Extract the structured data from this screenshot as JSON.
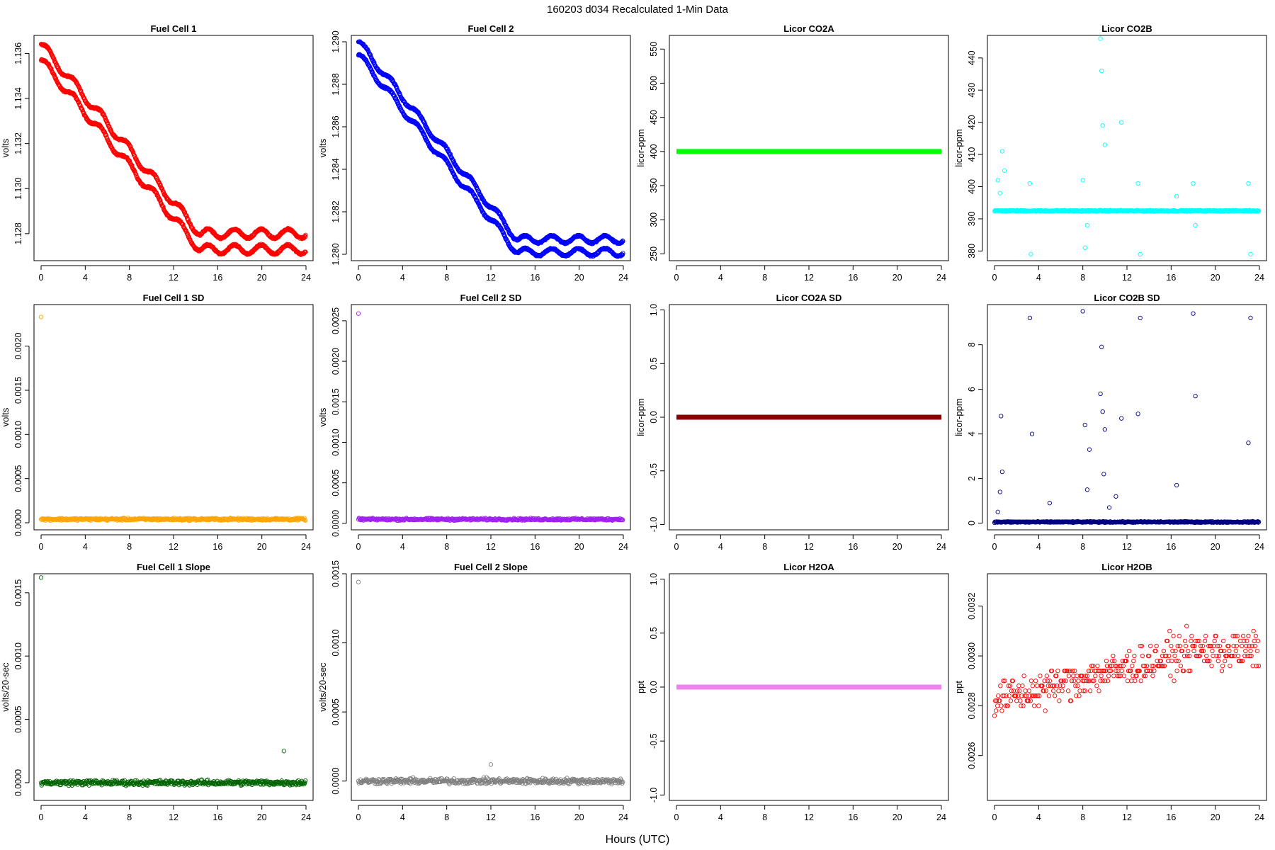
{
  "chart_data": {
    "type": "scatter",
    "title": "160203   d034   Recalculated 1-Min Data",
    "xlabel": "Hours (UTC)",
    "x_ticks": [
      "0",
      "4",
      "8",
      "12",
      "16",
      "20",
      "24"
    ],
    "xlim": [
      0,
      24
    ],
    "panels": [
      {
        "id": "fc1",
        "title": "Fuel Cell 1",
        "ylabel": "volts",
        "color": "#ff0000",
        "ylim": [
          1.1268,
          1.1368
        ],
        "yticks": [
          1.128,
          1.13,
          1.132,
          1.134,
          1.136
        ],
        "ytick_labels": [
          "1.128",
          "1.130",
          "1.132",
          "1.134",
          "1.136"
        ],
        "pattern": "fuelcell",
        "series_hi": 1.1364,
        "series_lo": 1.1361,
        "series_end": 1.128,
        "band": 0.0007
      },
      {
        "id": "fc2",
        "title": "Fuel Cell 2",
        "ylabel": "volts",
        "color": "#0000ff",
        "ylim": [
          1.2797,
          1.2903
        ],
        "yticks": [
          1.28,
          1.282,
          1.284,
          1.286,
          1.288,
          1.29
        ],
        "ytick_labels": [
          "1.280",
          "1.282",
          "1.284",
          "1.286",
          "1.288",
          "1.290"
        ],
        "pattern": "fuelcell",
        "series_hi": 1.29,
        "series_lo": 1.2896,
        "series_end": 1.2807,
        "band": 0.0006
      },
      {
        "id": "co2a",
        "title": "Licor CO2A",
        "ylabel": "licor-ppm",
        "color": "#00ff00",
        "ylim": [
          240,
          570
        ],
        "yticks": [
          250,
          300,
          350,
          400,
          450,
          500,
          550
        ],
        "ytick_labels": [
          "250",
          "300",
          "350",
          "400",
          "450",
          "500",
          "550"
        ],
        "pattern": "flat",
        "value": 400
      },
      {
        "id": "co2b",
        "title": "Licor CO2B",
        "ylabel": "licor-ppm",
        "color": "#00ffff",
        "ylim": [
          377,
          447
        ],
        "yticks": [
          380,
          390,
          400,
          410,
          420,
          430,
          440
        ],
        "ytick_labels": [
          "380",
          "390",
          "400",
          "410",
          "420",
          "430",
          "440"
        ],
        "pattern": "baseline_spikes",
        "base": 392.5,
        "spikes_x": [
          0.3,
          0.5,
          0.7,
          0.9,
          3.2,
          3.3,
          8.0,
          8.2,
          8.4,
          9.6,
          9.7,
          9.8,
          10.0,
          11.5,
          13.0,
          13.2,
          16.5,
          18.0,
          18.2,
          23.0,
          23.2
        ],
        "spikes_y": [
          402,
          398,
          411,
          405,
          401,
          379,
          402,
          381,
          388,
          446,
          436,
          419,
          413,
          420,
          401,
          379,
          397,
          401,
          388,
          401,
          379
        ]
      },
      {
        "id": "fc1sd",
        "title": "Fuel Cell 1 SD",
        "ylabel": "volts",
        "color": "#ffa500",
        "ylim": [
          -8e-05,
          0.00247
        ],
        "yticks": [
          0.0,
          0.0005,
          0.001,
          0.0015,
          0.002
        ],
        "ytick_labels": [
          "0.0000",
          "0.0005",
          "0.0010",
          "0.0015",
          "0.0020"
        ],
        "pattern": "noise_low",
        "base": 4e-05,
        "spread": 2e-05,
        "outlier_x": 0.0,
        "outlier_y": 0.00233
      },
      {
        "id": "fc2sd",
        "title": "Fuel Cell 2 SD",
        "ylabel": "volts",
        "color": "#a020f0",
        "ylim": [
          -8e-05,
          0.0027
        ],
        "yticks": [
          0.0,
          0.0005,
          0.001,
          0.0015,
          0.002,
          0.0025
        ],
        "ytick_labels": [
          "0.0000",
          "0.0005",
          "0.0010",
          "0.0015",
          "0.0020",
          "0.0025"
        ],
        "pattern": "noise_low",
        "base": 5e-05,
        "spread": 2e-05,
        "outlier_x": 0.0,
        "outlier_y": 0.00259
      },
      {
        "id": "co2asd",
        "title": "Licor CO2A SD",
        "ylabel": "licor-ppm",
        "color": "#8b0000",
        "ylim": [
          -1.05,
          1.05
        ],
        "yticks": [
          -1.0,
          -0.5,
          0.0,
          0.5,
          1.0
        ],
        "ytick_labels": [
          "-1.0",
          "-0.5",
          "0.0",
          "0.5",
          "1.0"
        ],
        "pattern": "flat",
        "value": 0.0
      },
      {
        "id": "co2bsd",
        "title": "Licor CO2B SD",
        "ylabel": "licor-ppm",
        "color": "#000080",
        "ylim": [
          -0.3,
          9.8
        ],
        "yticks": [
          0,
          2,
          4,
          6,
          8
        ],
        "ytick_labels": [
          "0",
          "2",
          "4",
          "6",
          "8"
        ],
        "pattern": "baseline_spikes",
        "base": 0.05,
        "spikes_x": [
          0.3,
          0.5,
          0.7,
          3.2,
          3.4,
          8.0,
          8.2,
          8.4,
          9.6,
          9.7,
          9.8,
          10.0,
          11.5,
          13.0,
          13.2,
          16.5,
          18.0,
          18.2,
          23.0,
          23.2,
          0.6,
          5.0,
          8.6,
          9.9,
          10.4,
          11.0
        ],
        "spikes_y": [
          0.5,
          1.4,
          2.3,
          9.2,
          4.0,
          9.5,
          4.4,
          1.5,
          5.8,
          7.9,
          5.0,
          4.2,
          4.7,
          4.9,
          9.2,
          1.7,
          9.4,
          5.7,
          3.6,
          9.2,
          4.8,
          0.9,
          3.3,
          2.2,
          0.7,
          1.2
        ]
      },
      {
        "id": "fc1slope",
        "title": "Fuel Cell 1 Slope",
        "ylabel": "volts/20-sec",
        "color": "#006400",
        "ylim": [
          -0.00014,
          0.00165
        ],
        "yticks": [
          0.0,
          0.0005,
          0.001,
          0.0015
        ],
        "ytick_labels": [
          "0.0000",
          "0.0005",
          "0.0010",
          "0.0015"
        ],
        "pattern": "noise_zero",
        "spread": 3e-05,
        "outlier_x": 0.0,
        "outlier_y": 0.00162,
        "outlier2_x": 22.0,
        "outlier2_y": 0.00025
      },
      {
        "id": "fc2slope",
        "title": "Fuel Cell 2 Slope",
        "ylabel": "volts/20-sec",
        "color": "#808080",
        "ylim": [
          -0.00014,
          0.0015
        ],
        "yticks": [
          0.0,
          0.0005,
          0.001,
          0.0015
        ],
        "ytick_labels": [
          "0.0000",
          "0.0005",
          "0.0010",
          "0.0015"
        ],
        "pattern": "noise_zero",
        "spread": 3e-05,
        "outlier_x": 0.0,
        "outlier_y": 0.00144,
        "outlier2_x": 12.0,
        "outlier2_y": 0.00012
      },
      {
        "id": "h2oa",
        "title": "Licor H2OA",
        "ylabel": "ppt",
        "color": "#ee82ee",
        "ylim": [
          -1.05,
          1.05
        ],
        "yticks": [
          -1.0,
          -0.5,
          0.0,
          0.5,
          1.0
        ],
        "ytick_labels": [
          "-1.0",
          "-0.5",
          "0.0",
          "0.5",
          "1.0"
        ],
        "pattern": "flat",
        "value": 0.0
      },
      {
        "id": "h2ob",
        "title": "Licor H2OB",
        "ylabel": "ppt",
        "color": "#ff0000",
        "ylim": [
          0.00242,
          0.00333
        ],
        "yticks": [
          0.0026,
          0.0028,
          0.003,
          0.0032
        ],
        "ytick_labels": [
          "0.0026",
          "0.0028",
          "0.0030",
          "0.0032"
        ],
        "pattern": "quantized",
        "level_start": 0.00282,
        "level_end": 0.00302,
        "step": 2e-05,
        "spread": 0.00011
      }
    ]
  }
}
